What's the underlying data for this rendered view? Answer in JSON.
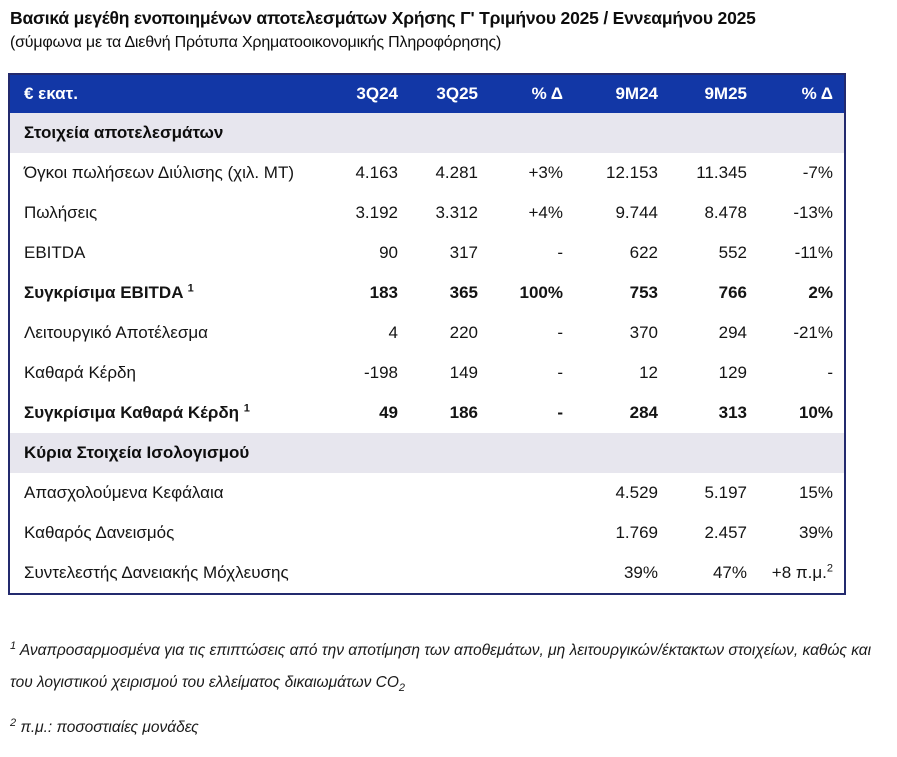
{
  "page": {
    "title": "Βασικά μεγέθη ενοποιημένων αποτελεσμάτων Χρήσης Γ' Τριμήνου 2025 / Εννεαμήνου 2025",
    "subtitle": "(σύμφωνα με τα Διεθνή Πρότυπα Χρηματοοικονομικής Πληροφόρησης)"
  },
  "colors": {
    "header_bg": "#1237a6",
    "table_border": "#232a6e",
    "section_bg": "#e7e6ee",
    "accent_bar": "#1237a6"
  },
  "table": {
    "header": {
      "unit": "€ εκατ.",
      "c1": "3Q24",
      "c2": "3Q25",
      "c3": "% Δ",
      "c4": "9M24",
      "c5": "9M25",
      "c6": "% Δ"
    },
    "section1": {
      "label": "Στοιχεία αποτελεσμάτων"
    },
    "section2": {
      "label": "Κύρια Στοιχεία Ισολογισμού"
    },
    "rows": [
      {
        "label": "Όγκοι πωλήσεων Διύλισης (χιλ. ΜΤ)",
        "sup": "",
        "c": [
          "4.163",
          "4.281",
          "+3%",
          "12.153",
          "11.345",
          "-7%"
        ]
      },
      {
        "label": "Πωλήσεις",
        "sup": "",
        "c": [
          "3.192",
          "3.312",
          "+4%",
          "9.744",
          "8.478",
          "-13%"
        ]
      },
      {
        "label": "EBITDA",
        "sup": "",
        "c": [
          "90",
          "317",
          "-",
          "622",
          "552",
          "-11%"
        ]
      },
      {
        "label": "Συγκρίσιμα EBITDA",
        "sup": "1",
        "c": [
          "183",
          "365",
          "100%",
          "753",
          "766",
          "2%"
        ]
      },
      {
        "label": "Λειτουργικό Αποτέλεσμα",
        "sup": "",
        "c": [
          "4",
          "220",
          "-",
          "370",
          "294",
          "-21%"
        ]
      },
      {
        "label": "Καθαρά Κέρδη",
        "sup": "",
        "c": [
          "-198",
          "149",
          "-",
          "12",
          "129",
          "-"
        ]
      },
      {
        "label": "Συγκρίσιμα Καθαρά Κέρδη",
        "sup": "1",
        "c": [
          "49",
          "186",
          "-",
          "284",
          "313",
          "10%"
        ]
      },
      {
        "label": "Απασχολούμενα Κεφάλαια",
        "sup": "",
        "c": [
          "",
          "",
          "",
          "4.529",
          "5.197",
          "15%"
        ]
      },
      {
        "label": "Καθαρός Δανεισμός",
        "sup": "",
        "c": [
          "",
          "",
          "",
          "1.769",
          "2.457",
          "39%"
        ]
      },
      {
        "label": "Συντελεστής Δανειακής Μόχλευσης",
        "sup": "",
        "c": [
          "",
          "",
          "",
          "39%",
          "47%",
          "+8 π.μ."
        ],
        "last_sup": "2"
      }
    ]
  },
  "footnotes": {
    "fn1": {
      "sup": "1",
      "text": "Αναπροσαρμοσμένα για τις επιπτώσεις από την αποτίμηση των αποθεμάτων, μη λειτουργικών/έκτακτων στοιχείων, καθώς και του λογιστικού χειρισμού του ελλείματος δικαιωμάτων CO",
      "sub": "2"
    },
    "fn2": {
      "sup": "2",
      "text": "π.μ.: ποσοστιαίες μονάδες"
    }
  }
}
